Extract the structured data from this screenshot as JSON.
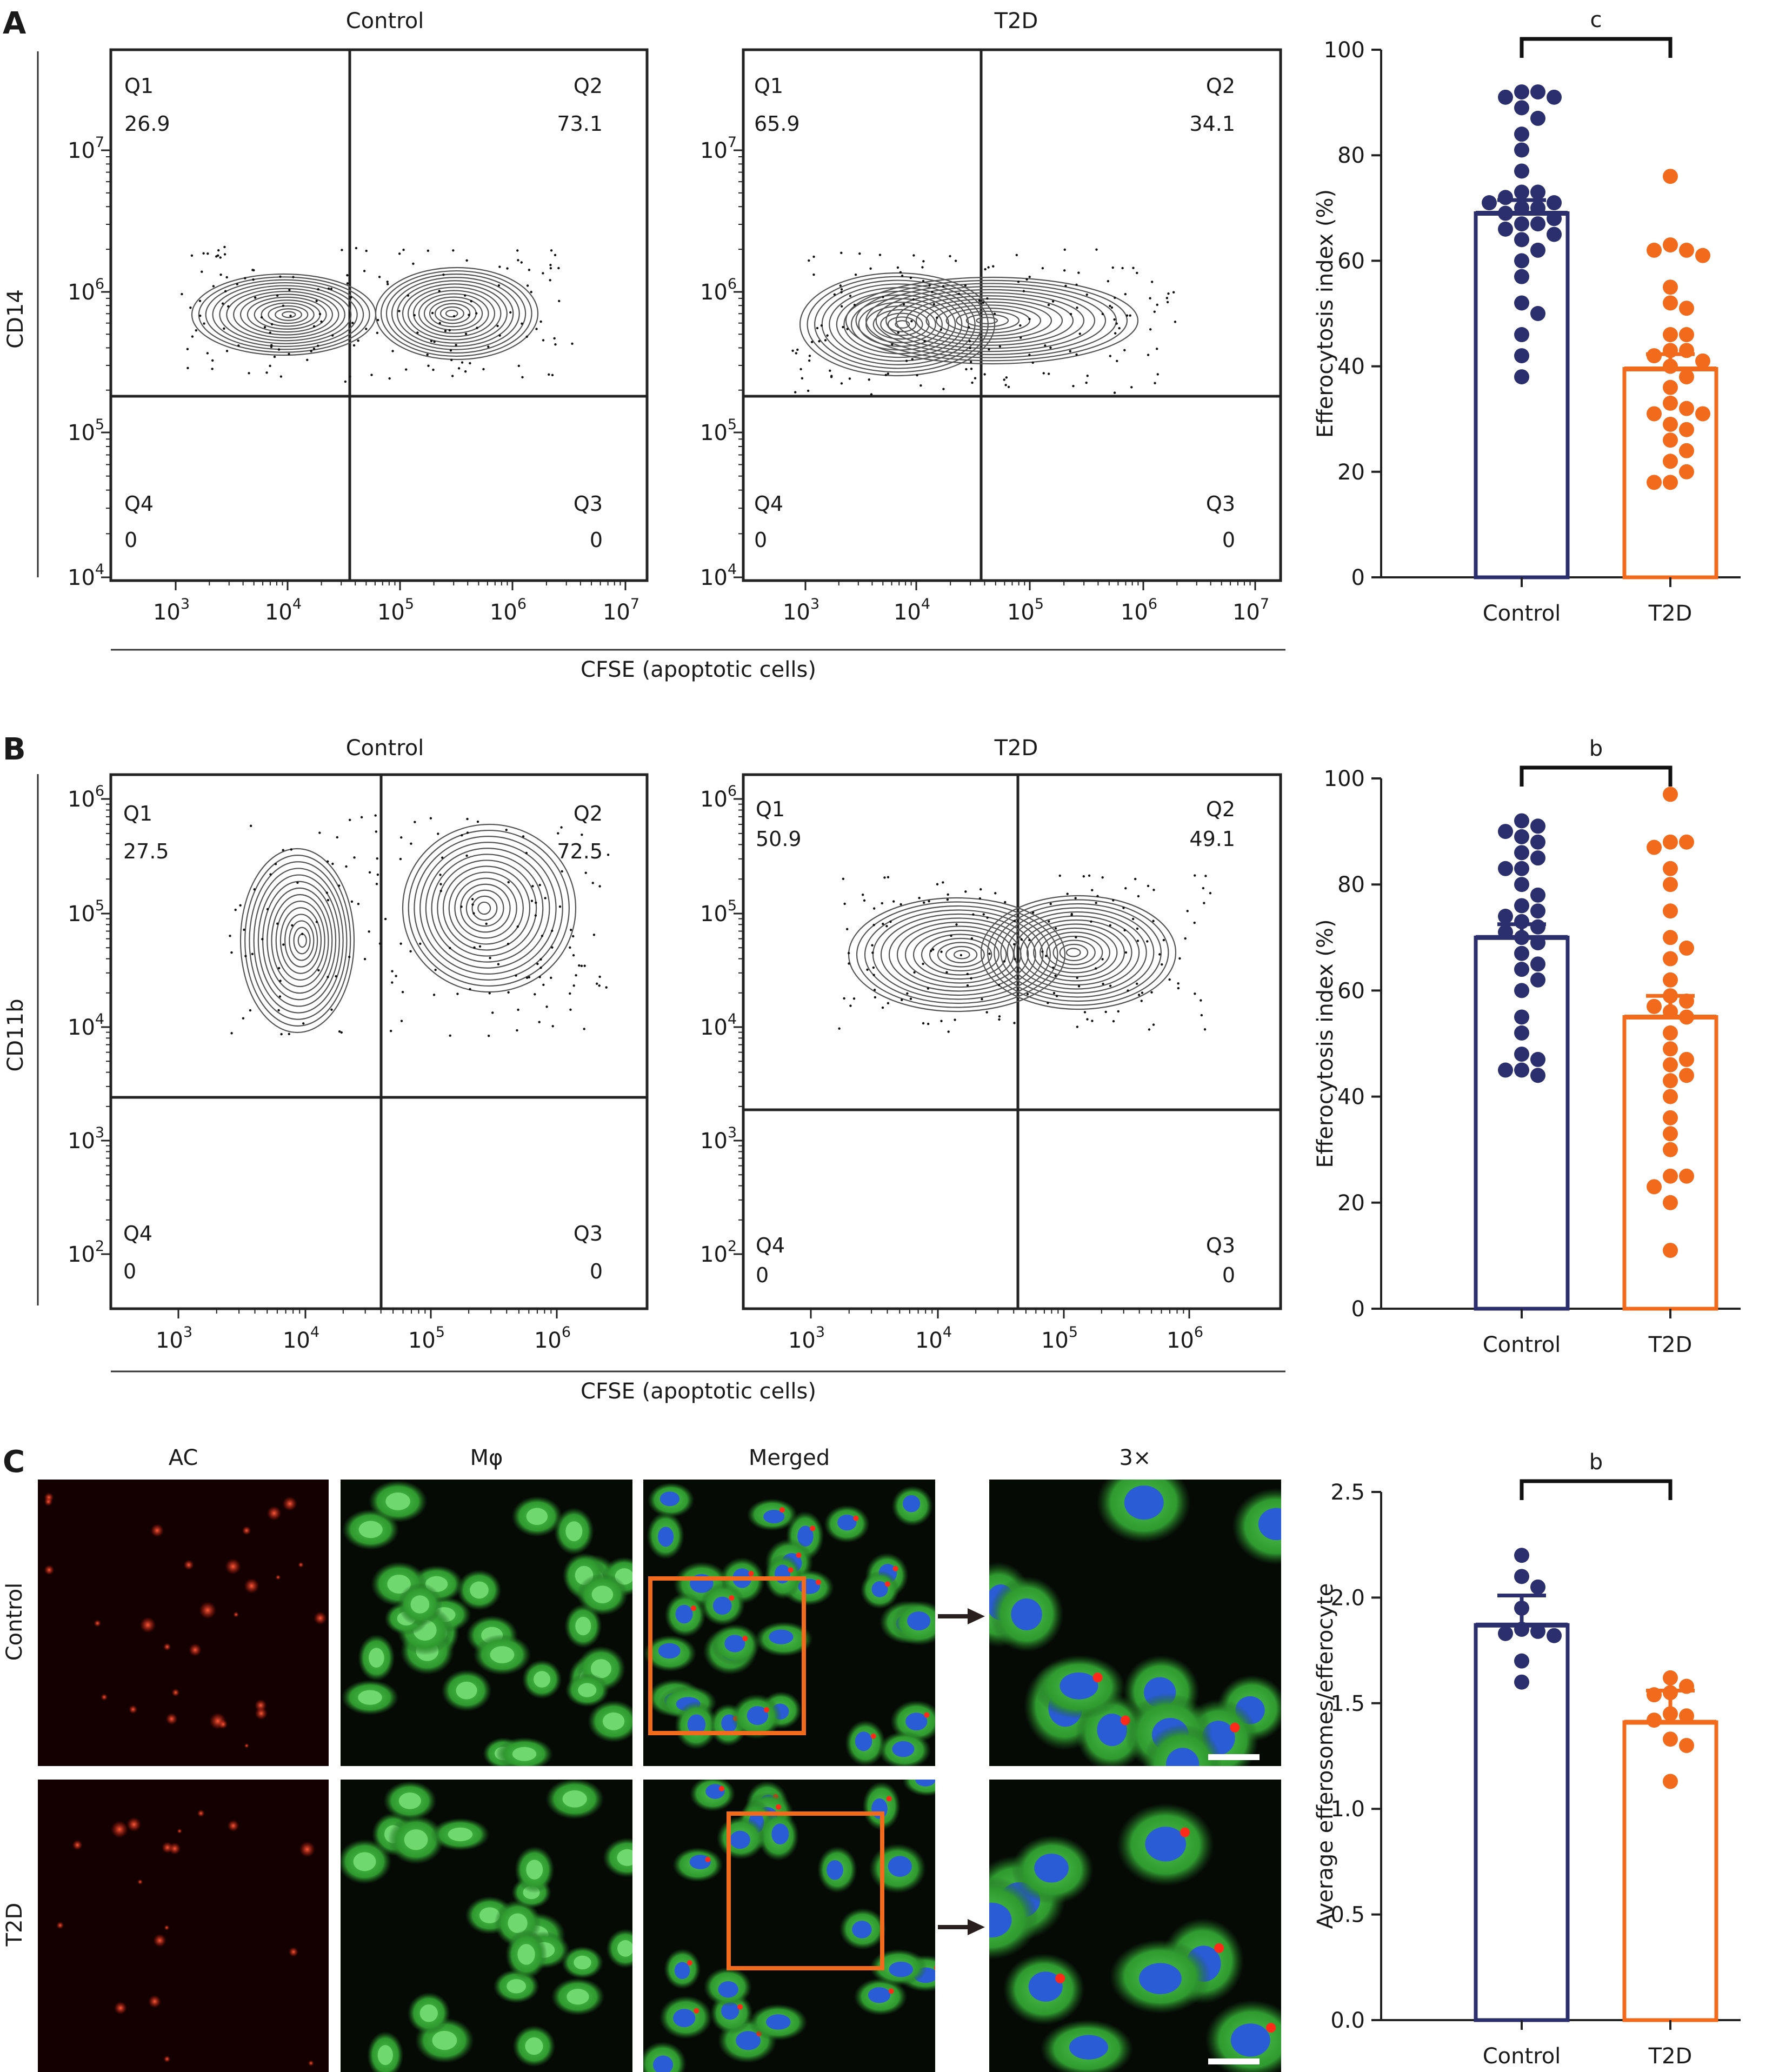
{
  "panels": {
    "A": {
      "letter": "A",
      "axis_y_label": "CD14",
      "axis_x_label": "CFSE (apoptotic cells)",
      "flow": [
        {
          "title": "Control",
          "Q1": [
            "Q1",
            "26.9"
          ],
          "Q2": [
            "Q2",
            "73.1"
          ],
          "Q3": [
            "Q3",
            "0"
          ],
          "Q4": [
            "Q4",
            "0"
          ]
        },
        {
          "title": "T2D",
          "Q1": [
            "Q1",
            "65.9"
          ],
          "Q2": [
            "Q2",
            "34.1"
          ],
          "Q3": [
            "Q3",
            "0"
          ],
          "Q4": [
            "Q4",
            "0"
          ]
        }
      ],
      "x_ticks": [
        "3",
        "4",
        "5",
        "6",
        "7"
      ],
      "y_ticks": [
        "4",
        "5",
        "6",
        "7"
      ]
    },
    "B": {
      "letter": "B",
      "axis_y_label": "CD11b",
      "axis_x_label": "CFSE (apoptotic cells)",
      "flow": [
        {
          "title": "Control",
          "Q1": [
            "Q1",
            "27.5"
          ],
          "Q2": [
            "Q2",
            "72.5"
          ],
          "Q3": [
            "Q3",
            "0"
          ],
          "Q4": [
            "Q4",
            "0"
          ]
        },
        {
          "title": "T2D",
          "Q1": [
            "Q1",
            "50.9"
          ],
          "Q2": [
            "Q2",
            "49.1"
          ],
          "Q3": [
            "Q3",
            "0"
          ],
          "Q4": [
            "Q4",
            "0"
          ]
        }
      ],
      "x_ticks": [
        "3",
        "4",
        "5",
        "6"
      ],
      "y_ticks": [
        "2",
        "3",
        "4",
        "5",
        "6"
      ]
    },
    "C": {
      "letter": "C",
      "columns": [
        "AC",
        "Mφ",
        "Merged",
        "3×"
      ],
      "rows": [
        "Control",
        "T2D"
      ]
    }
  },
  "colors": {
    "control": "#2b2f6e",
    "t2d": "#f26a1b",
    "contour": "#555555",
    "gate_box": "#f26a1b",
    "red_channel": "#ff2a1a",
    "green_channel": "#3aa83a",
    "blue_channel": "#2a5cd6"
  },
  "chart_data": [
    {
      "type": "bar",
      "panel": "A",
      "categories": [
        "Control",
        "T2D"
      ],
      "ylabel": "Efferocytosis index (%)",
      "ylim": [
        0,
        100
      ],
      "yticks": [
        "0",
        "20",
        "40",
        "60",
        "80",
        "100"
      ],
      "significance": "c",
      "means": [
        69,
        39.5
      ],
      "sem": [
        2.5,
        2.8
      ],
      "points": [
        [
          92,
          92,
          91,
          91,
          89,
          87,
          84,
          81,
          77,
          73,
          73,
          72,
          71,
          71,
          70,
          70,
          69,
          68,
          67,
          67,
          66,
          65,
          64,
          62,
          60,
          57,
          52,
          50,
          46,
          42,
          38
        ],
        [
          76,
          63,
          62,
          62,
          61,
          55,
          52,
          51,
          46,
          46,
          43,
          43,
          42,
          41,
          40,
          38,
          36,
          33,
          32,
          31,
          31,
          29,
          28,
          26,
          24,
          22,
          20,
          18,
          18
        ]
      ]
    },
    {
      "type": "bar",
      "panel": "B",
      "categories": [
        "Control",
        "T2D"
      ],
      "ylabel": "Efferocytosis index (%)",
      "ylim": [
        0,
        100
      ],
      "yticks": [
        "0",
        "20",
        "40",
        "60",
        "80",
        "100"
      ],
      "significance": "b",
      "means": [
        70,
        55
      ],
      "sem": [
        2.5,
        4
      ],
      "points": [
        [
          92,
          91,
          90,
          89,
          88,
          86,
          85,
          83,
          83,
          80,
          78,
          76,
          75,
          74,
          73,
          72,
          71,
          70,
          69,
          67,
          65,
          64,
          62,
          60,
          55,
          52,
          48,
          47,
          45,
          45,
          44
        ],
        [
          97,
          88,
          88,
          87,
          83,
          80,
          75,
          70,
          68,
          66,
          62,
          59,
          58,
          57,
          56,
          55,
          52,
          49,
          47,
          46,
          44,
          43,
          40,
          36,
          33,
          30,
          25,
          25,
          23,
          20,
          11
        ]
      ]
    },
    {
      "type": "bar",
      "panel": "C",
      "categories": [
        "Control",
        "T2D"
      ],
      "ylabel": "Average efferosomes/efferocyte",
      "ylim": [
        0,
        2.5
      ],
      "yticks": [
        "0.0",
        "0.5",
        "1.0",
        "1.5",
        "2.0",
        "2.5"
      ],
      "significance": "b",
      "means": [
        1.87,
        1.41
      ],
      "sem": [
        0.14,
        0.15
      ],
      "points": [
        [
          2.2,
          2.1,
          2.05,
          1.95,
          1.85,
          1.84,
          1.83,
          1.82,
          1.7,
          1.6
        ],
        [
          1.62,
          1.58,
          1.55,
          1.54,
          1.45,
          1.44,
          1.42,
          1.33,
          1.3,
          1.13
        ]
      ]
    }
  ]
}
